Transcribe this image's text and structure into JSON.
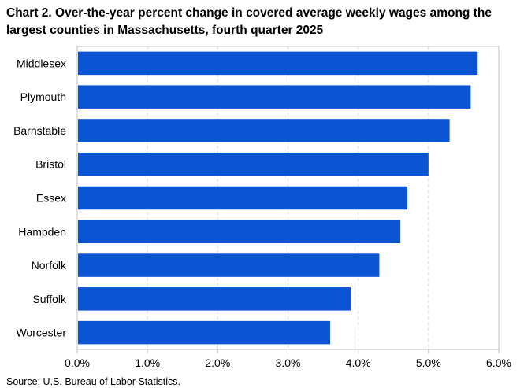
{
  "title_line1": "Chart 2. Over-the-year percent change in covered average weekly wages among the",
  "title_line2": "largest counties in Massachusetts, fourth quarter 2025",
  "source": "Source: U.S. Bureau of Labor Statistics.",
  "colors": {
    "bar": "#0b54d4",
    "grid": "#d9d9d9",
    "axis": "#bfbfbf"
  },
  "chart_data": {
    "type": "bar",
    "orientation": "horizontal",
    "categories": [
      "Middlesex",
      "Plymouth",
      "Barnstable",
      "Bristol",
      "Essex",
      "Hampden",
      "Norfolk",
      "Suffolk",
      "Worcester"
    ],
    "values": [
      5.7,
      5.6,
      5.3,
      5.0,
      4.7,
      4.6,
      4.3,
      3.9,
      3.6
    ],
    "unit": "percent",
    "xlim": [
      0,
      6
    ],
    "xticks": [
      0,
      1,
      2,
      3,
      4,
      5,
      6
    ],
    "xtick_labels": [
      "0.0%",
      "1.0%",
      "2.0%",
      "3.0%",
      "4.0%",
      "5.0%",
      "6.0%"
    ],
    "grid": "vertical dashed",
    "legend": "none"
  }
}
